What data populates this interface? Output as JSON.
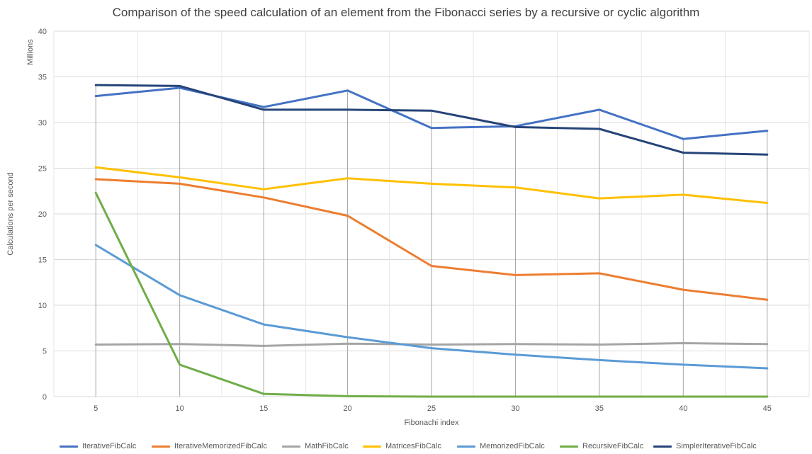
{
  "chart_data": {
    "type": "line",
    "title": "Comparison of the speed calculation of an element from the Fibonacci series by a recursive or cyclic algorithm",
    "xlabel": "Fibonachi index",
    "ylabel": "Calculations per second",
    "yunit_label": "Millions",
    "x": [
      5,
      10,
      15,
      20,
      25,
      30,
      35,
      40,
      45
    ],
    "ylim": [
      0,
      40
    ],
    "yticks": [
      0,
      5,
      10,
      15,
      20,
      25,
      30,
      35,
      40
    ],
    "grid": true,
    "legend_position": "bottom",
    "series": [
      {
        "name": "IterativeFibCalc",
        "color": "#4472C4",
        "values": [
          32.9,
          33.8,
          31.7,
          33.5,
          29.4,
          29.6,
          31.4,
          28.2,
          29.1
        ]
      },
      {
        "name": "IterativeMemorizedFibCalc",
        "color": "#ED7D31",
        "values": [
          23.8,
          23.3,
          21.8,
          19.8,
          14.3,
          13.3,
          13.5,
          11.7,
          10.6
        ]
      },
      {
        "name": "MathFibCalc",
        "color": "#A5A5A5",
        "values": [
          5.7,
          5.75,
          5.55,
          5.8,
          5.7,
          5.75,
          5.7,
          5.85,
          5.75
        ]
      },
      {
        "name": "MatricesFibCalc",
        "color": "#FFC000",
        "values": [
          25.1,
          24.0,
          22.7,
          23.9,
          23.3,
          22.9,
          21.7,
          22.1,
          21.2
        ]
      },
      {
        "name": "MemorizedFibCalc",
        "color": "#5B9BD5",
        "values": [
          16.6,
          11.1,
          7.9,
          6.5,
          5.3,
          4.6,
          4.0,
          3.5,
          3.1
        ]
      },
      {
        "name": "RecursiveFibCalc",
        "color": "#70AD47",
        "values": [
          22.3,
          3.5,
          0.3,
          0.05,
          0,
          0,
          0,
          0,
          0
        ]
      },
      {
        "name": "SimplerIterativeFibCalc",
        "color": "#264478",
        "values": [
          34.1,
          34.0,
          31.4,
          31.4,
          31.3,
          29.5,
          29.3,
          26.7,
          26.5
        ]
      }
    ]
  }
}
